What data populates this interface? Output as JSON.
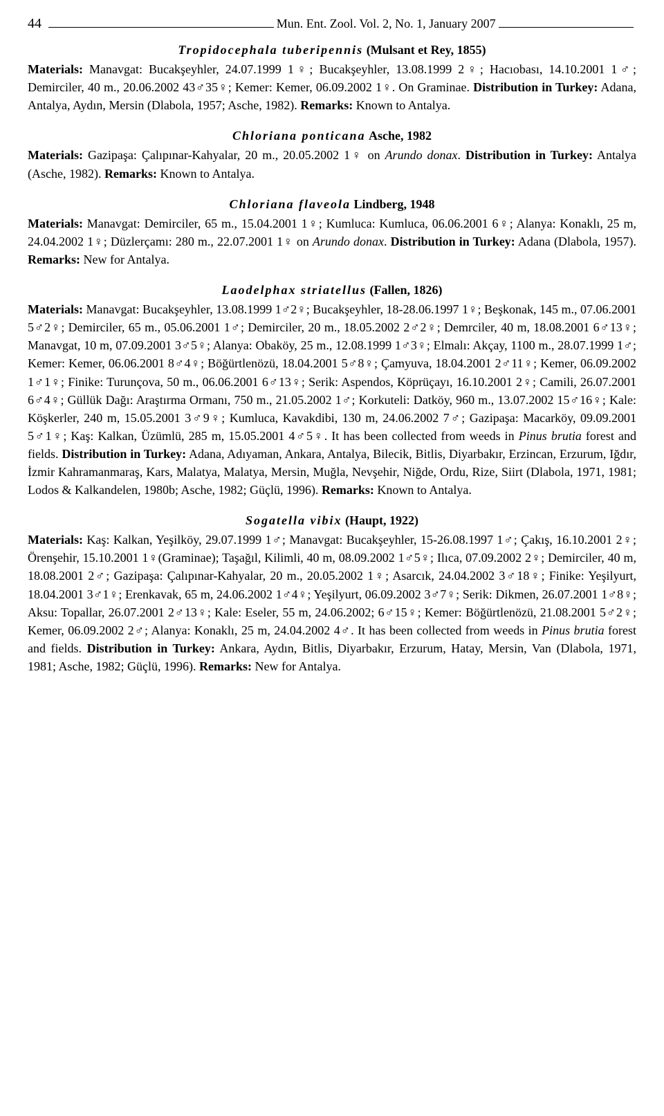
{
  "header": {
    "page_number": "44",
    "journal": "Mun. Ent. Zool. Vol. 2, No. 1, January 2007"
  },
  "entries": [
    {
      "name": "Tropidocephala tuberipennis",
      "authority": "(Mulsant et Rey, 1855)",
      "materials_label": "Materials:",
      "materials": " Manavgat: Bucakşeyhler, 24.07.1999 1♀; Bucakşeyhler, 13.08.1999 2♀; Hacıobası, 14.10.2001 1♂; Demirciler, 40 m., 20.06.2002 43♂35♀; Kemer: Kemer, 06.09.2002 1♀. On Graminae. ",
      "dist_label": "Distribution in Turkey:",
      "distribution": " Adana, Antalya, Aydın, Mersin (Dlabola, 1957; Asche, 1982). ",
      "rem_label": "Remarks:",
      "remarks": " Known to Antalya."
    },
    {
      "name": "Chloriana ponticana",
      "authority": "Asche, 1982",
      "materials_label": "Materials:",
      "materials": " Gazipaşa: Çalıpınar-Kahyalar, 20 m., 20.05.2002 1♀ on ",
      "italic1": "Arundo donax",
      "materials2": ". ",
      "dist_label": "Distribution in Turkey:",
      "distribution": " Antalya (Asche, 1982). ",
      "rem_label": "Remarks:",
      "remarks": " Known to Antalya."
    },
    {
      "name": "Chloriana flaveola",
      "authority": "Lindberg, 1948",
      "materials_label": "Materials:",
      "materials": " Manavgat: Demirciler, 65 m., 15.04.2001 1♀; Kumluca: Kumluca, 06.06.2001 6♀; Alanya: Konaklı, 25 m, 24.04.2002 1♀; Düzlerçamı: 280 m., 22.07.2001 1♀ on ",
      "italic1": "Arundo donax",
      "materials2": ". ",
      "dist_label": "Distribution in Turkey:",
      "distribution": " Adana (Dlabola, 1957). ",
      "rem_label": "Remarks:",
      "remarks": " New for Antalya."
    },
    {
      "name": "Laodelphax striatellus",
      "authority": "(Fallen, 1826)",
      "materials_label": "Materials:",
      "materials": " Manavgat: Bucakşeyhler, 13.08.1999 1♂2♀; Bucakşeyhler, 18-28.06.1997 1♀; Beşkonak, 145 m., 07.06.2001 5♂2♀; Demirciler, 65 m., 05.06.2001 1♂; Demirciler, 20 m., 18.05.2002 2♂2♀; Demrciler, 40 m, 18.08.2001 6♂13♀; Manavgat, 10 m, 07.09.2001 3♂5♀; Alanya: Obaköy, 25 m., 12.08.1999 1♂3♀; Elmalı: Akçay, 1100 m., 28.07.1999 1♂; Kemer: Kemer, 06.06.2001 8♂4♀; Böğürtlenözü, 18.04.2001 5♂8♀; Çamyuva, 18.04.2001 2♂11♀; Kemer, 06.09.2002 1♂1♀; Finike: Turunçova, 50 m., 06.06.2001 6♂13♀; Serik: Aspendos, Köprüçayı, 16.10.2001 2♀; Camili, 26.07.2001 6♂4♀; Güllük Dağı: Araştırma Ormanı, 750 m., 21.05.2002 1♂; Korkuteli: Datköy, 960 m., 13.07.2002 15♂16♀; Kale: Köşkerler, 240 m, 15.05.2001 3♂9♀; Kumluca, Kavakdibi, 130 m, 24.06.2002 7♂; Gazipaşa: Macarköy, 09.09.2001 5♂1♀; Kaş: Kalkan, Üzümlü, 285 m, 15.05.2001 4♂5♀. It has been collected from weeds in ",
      "italic1": "Pinus brutia",
      "materials2": " forest and fields. ",
      "dist_label": "Distribution in Turkey:",
      "distribution": " Adana, Adıyaman, Ankara, Antalya, Bilecik, Bitlis, Diyarbakır, Erzincan, Erzurum, Iğdır, İzmir Kahramanmaraş, Kars, Malatya, Malatya, Mersin, Muğla, Nevşehir, Niğde, Ordu, Rize, Siirt (Dlabola, 1971, 1981; Lodos & Kalkandelen, 1980b; Asche, 1982; Güçlü, 1996). ",
      "rem_label": "Remarks:",
      "remarks": " Known to Antalya."
    },
    {
      "name": "Sogatella vibix",
      "authority": "(Haupt, 1922)",
      "materials_label": "Materials:",
      "materials": " Kaş: Kalkan, Yeşilköy, 29.07.1999 1♂; Manavgat: Bucakşeyhler, 15-26.08.1997 1♂; Çakış, 16.10.2001 2♀; Örenşehir, 15.10.2001 1♀(Graminae); Taşağıl, Kilimli, 40 m, 08.09.2002 1♂5♀; Ilıca, 07.09.2002 2♀; Demirciler, 40 m, 18.08.2001 2♂; Gazipaşa: Çalıpınar-Kahyalar, 20 m., 20.05.2002 1♀; Asarcık, 24.04.2002 3♂18♀; Finike: Yeşilyurt, 18.04.2001 3♂1♀; Erenkavak, 65 m, 24.06.2002 1♂4♀; Yeşilyurt, 06.09.2002 3♂7♀; Serik: Dikmen, 26.07.2001 1♂8♀; Aksu: Topallar, 26.07.2001 2♂13♀; Kale: Eseler, 55 m, 24.06.2002; 6♂15♀; Kemer: Böğürtlenözü, 21.08.2001 5♂2♀; Kemer, 06.09.2002 2♂; Alanya: Konaklı, 25 m, 24.04.2002 4♂. It has been collected from weeds in ",
      "italic1": "Pinus brutia",
      "materials2": " forest and fields. ",
      "dist_label": "Distribution in Turkey:",
      "distribution": " Ankara, Aydın, Bitlis, Diyarbakır, Erzurum, Hatay, Mersin, Van (Dlabola, 1971, 1981; Asche, 1982; Güçlü, 1996). ",
      "rem_label": "Remarks:",
      "remarks": " New for Antalya."
    }
  ]
}
